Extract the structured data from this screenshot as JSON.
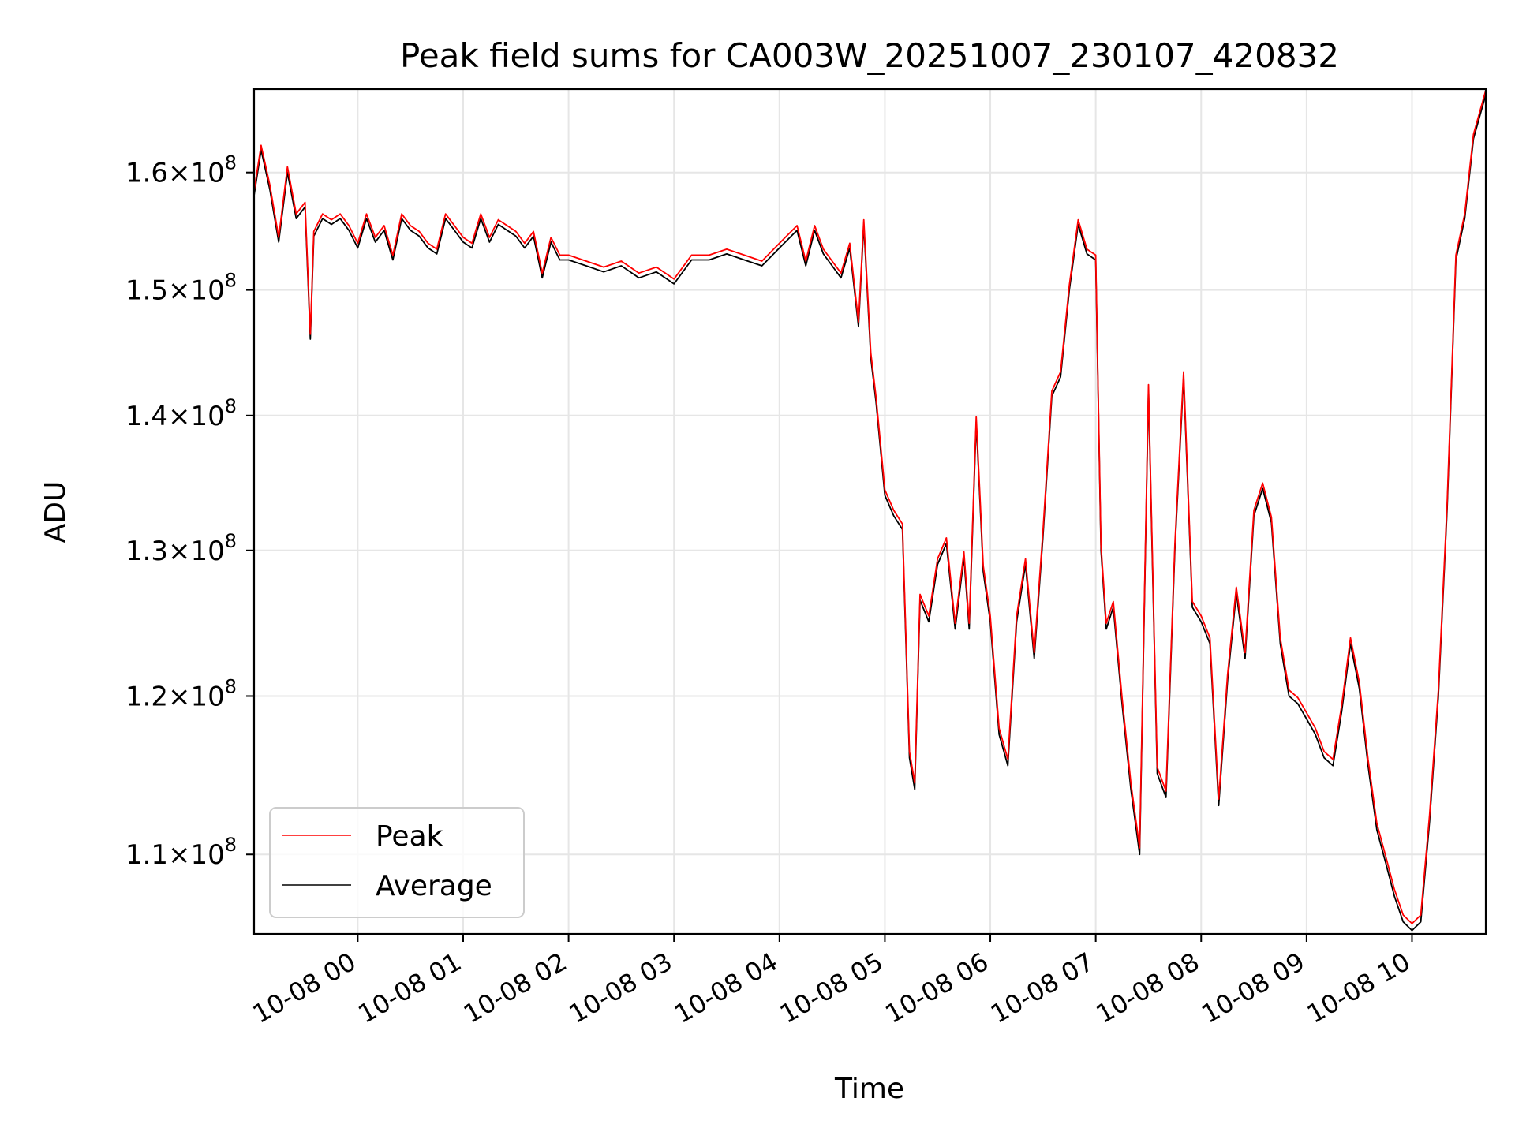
{
  "chart_data": {
    "type": "line",
    "title": "Peak field sums for CA003W_20251007_230107_420832",
    "xlabel": "Time",
    "ylabel": "ADU",
    "scale": {
      "x": "time",
      "y": "log"
    },
    "xlim": [
      "10-07 23:01",
      "10-08 10:42"
    ],
    "ylim": [
      105300000,
      167500000
    ],
    "x_ticks": [
      "10-08 00",
      "10-08 01",
      "10-08 02",
      "10-08 03",
      "10-08 04",
      "10-08 05",
      "10-08 06",
      "10-08 07",
      "10-08 08",
      "10-08 09",
      "10-08 10"
    ],
    "y_ticks": [
      {
        "value": 110000000,
        "base": "1.1",
        "exp": "8"
      },
      {
        "value": 120000000,
        "base": "1.2",
        "exp": "8"
      },
      {
        "value": 130000000,
        "base": "1.3",
        "exp": "8"
      },
      {
        "value": 140000000,
        "base": "1.4",
        "exp": "8"
      },
      {
        "value": 150000000,
        "base": "1.5",
        "exp": "8"
      },
      {
        "value": 160000000,
        "base": "1.6",
        "exp": "8"
      }
    ],
    "grid": true,
    "legend_position": "lower-left",
    "legend": [
      "Peak",
      "Average"
    ],
    "x": [
      "10-07 23:01",
      "10-07 23:05",
      "10-07 23:10",
      "10-07 23:15",
      "10-07 23:20",
      "10-07 23:25",
      "10-07 23:30",
      "10-07 23:33",
      "10-07 23:35",
      "10-07 23:40",
      "10-07 23:45",
      "10-07 23:50",
      "10-07 23:55",
      "10-08 00:00",
      "10-08 00:05",
      "10-08 00:10",
      "10-08 00:15",
      "10-08 00:20",
      "10-08 00:25",
      "10-08 00:30",
      "10-08 00:35",
      "10-08 00:40",
      "10-08 00:45",
      "10-08 00:50",
      "10-08 00:55",
      "10-08 01:00",
      "10-08 01:05",
      "10-08 01:10",
      "10-08 01:15",
      "10-08 01:20",
      "10-08 01:25",
      "10-08 01:30",
      "10-08 01:35",
      "10-08 01:40",
      "10-08 01:45",
      "10-08 01:50",
      "10-08 01:55",
      "10-08 02:00",
      "10-08 02:10",
      "10-08 02:20",
      "10-08 02:30",
      "10-08 02:40",
      "10-08 02:50",
      "10-08 03:00",
      "10-08 03:10",
      "10-08 03:20",
      "10-08 03:30",
      "10-08 03:40",
      "10-08 03:50",
      "10-08 04:00",
      "10-08 04:10",
      "10-08 04:15",
      "10-08 04:20",
      "10-08 04:25",
      "10-08 04:30",
      "10-08 04:35",
      "10-08 04:40",
      "10-08 04:45",
      "10-08 04:48",
      "10-08 04:52",
      "10-08 04:55",
      "10-08 05:00",
      "10-08 05:05",
      "10-08 05:10",
      "10-08 05:14",
      "10-08 05:17",
      "10-08 05:20",
      "10-08 05:25",
      "10-08 05:30",
      "10-08 05:35",
      "10-08 05:40",
      "10-08 05:45",
      "10-08 05:48",
      "10-08 05:52",
      "10-08 05:56",
      "10-08 06:00",
      "10-08 06:05",
      "10-08 06:10",
      "10-08 06:15",
      "10-08 06:20",
      "10-08 06:25",
      "10-08 06:30",
      "10-08 06:35",
      "10-08 06:40",
      "10-08 06:45",
      "10-08 06:50",
      "10-08 06:55",
      "10-08 07:00",
      "10-08 07:03",
      "10-08 07:06",
      "10-08 07:10",
      "10-08 07:15",
      "10-08 07:20",
      "10-08 07:25",
      "10-08 07:30",
      "10-08 07:35",
      "10-08 07:40",
      "10-08 07:45",
      "10-08 07:50",
      "10-08 07:55",
      "10-08 08:00",
      "10-08 08:05",
      "10-08 08:10",
      "10-08 08:15",
      "10-08 08:20",
      "10-08 08:25",
      "10-08 08:30",
      "10-08 08:35",
      "10-08 08:40",
      "10-08 08:45",
      "10-08 08:50",
      "10-08 08:55",
      "10-08 09:00",
      "10-08 09:05",
      "10-08 09:10",
      "10-08 09:15",
      "10-08 09:20",
      "10-08 09:25",
      "10-08 09:30",
      "10-08 09:35",
      "10-08 09:40",
      "10-08 09:45",
      "10-08 09:50",
      "10-08 09:55",
      "10-08 10:00",
      "10-08 10:05",
      "10-08 10:10",
      "10-08 10:15",
      "10-08 10:20",
      "10-08 10:25",
      "10-08 10:30",
      "10-08 10:35",
      "10-08 10:42"
    ],
    "series": [
      {
        "name": "Average",
        "color": "#000000",
        "values": [
          158000000,
          162000000,
          158500000,
          154000000,
          160000000,
          156000000,
          157000000,
          146000000,
          154500000,
          156000000,
          155500000,
          156000000,
          155000000,
          153500000,
          156000000,
          154000000,
          155000000,
          152500000,
          156000000,
          155000000,
          154500000,
          153500000,
          153000000,
          156000000,
          155000000,
          154000000,
          153500000,
          156000000,
          154000000,
          155500000,
          155000000,
          154500000,
          153500000,
          154500000,
          151000000,
          154000000,
          152500000,
          152500000,
          152000000,
          151500000,
          152000000,
          151000000,
          151500000,
          150500000,
          152500000,
          152500000,
          153000000,
          152500000,
          152000000,
          153500000,
          155000000,
          152000000,
          155000000,
          153000000,
          152000000,
          151000000,
          153500000,
          147000000,
          155500000,
          144500000,
          141000000,
          134000000,
          132500000,
          131500000,
          116000000,
          114000000,
          126500000,
          125000000,
          129000000,
          130500000,
          124500000,
          129500000,
          124500000,
          139500000,
          128500000,
          125000000,
          117500000,
          115500000,
          125000000,
          129000000,
          122500000,
          131000000,
          141500000,
          143000000,
          150000000,
          155500000,
          153000000,
          152500000,
          130000000,
          124500000,
          126000000,
          119500000,
          114000000,
          110000000,
          142000000,
          115000000,
          113500000,
          130000000,
          143000000,
          126000000,
          125000000,
          123500000,
          113000000,
          121000000,
          127000000,
          122500000,
          132500000,
          134500000,
          132000000,
          123500000,
          120000000,
          119500000,
          118500000,
          117500000,
          116000000,
          115500000,
          119000000,
          123500000,
          120500000,
          115500000,
          111500000,
          109500000,
          107500000,
          106000000,
          105500000,
          106000000,
          112000000,
          120000000,
          133000000,
          152500000,
          156000000,
          163000000,
          167000000
        ],
        "name_visible": true
      },
      {
        "name": "Peak",
        "color": "#ff0000",
        "values": [
          158400000,
          162400000,
          158900000,
          154400000,
          160500000,
          156400000,
          157400000,
          146400000,
          154900000,
          156400000,
          155900000,
          156400000,
          155400000,
          153900000,
          156400000,
          154400000,
          155400000,
          152900000,
          156400000,
          155400000,
          154900000,
          153900000,
          153400000,
          156400000,
          155400000,
          154400000,
          153900000,
          156400000,
          154400000,
          155900000,
          155400000,
          154900000,
          153900000,
          154900000,
          151400000,
          154400000,
          152900000,
          152900000,
          152400000,
          151900000,
          152400000,
          151400000,
          151900000,
          150900000,
          152900000,
          152900000,
          153400000,
          152900000,
          152400000,
          153900000,
          155400000,
          152400000,
          155400000,
          153400000,
          152400000,
          151400000,
          153900000,
          147400000,
          155900000,
          144900000,
          141400000,
          134400000,
          132900000,
          131900000,
          116400000,
          114400000,
          126900000,
          125400000,
          129400000,
          130900000,
          124900000,
          129900000,
          124900000,
          139900000,
          128900000,
          125400000,
          117900000,
          115900000,
          125400000,
          129400000,
          122900000,
          131400000,
          141900000,
          143400000,
          150400000,
          155900000,
          153400000,
          152900000,
          130400000,
          124900000,
          126400000,
          119900000,
          114400000,
          110400000,
          142400000,
          115400000,
          113900000,
          130400000,
          143400000,
          126400000,
          125400000,
          123900000,
          113400000,
          121400000,
          127400000,
          122900000,
          132900000,
          134900000,
          132400000,
          123900000,
          120400000,
          119900000,
          118900000,
          117900000,
          116400000,
          115900000,
          119400000,
          123900000,
          120900000,
          115900000,
          111900000,
          109900000,
          107900000,
          106400000,
          105900000,
          106400000,
          112400000,
          120400000,
          133400000,
          152900000,
          156400000,
          163400000,
          167400000
        ]
      }
    ]
  }
}
